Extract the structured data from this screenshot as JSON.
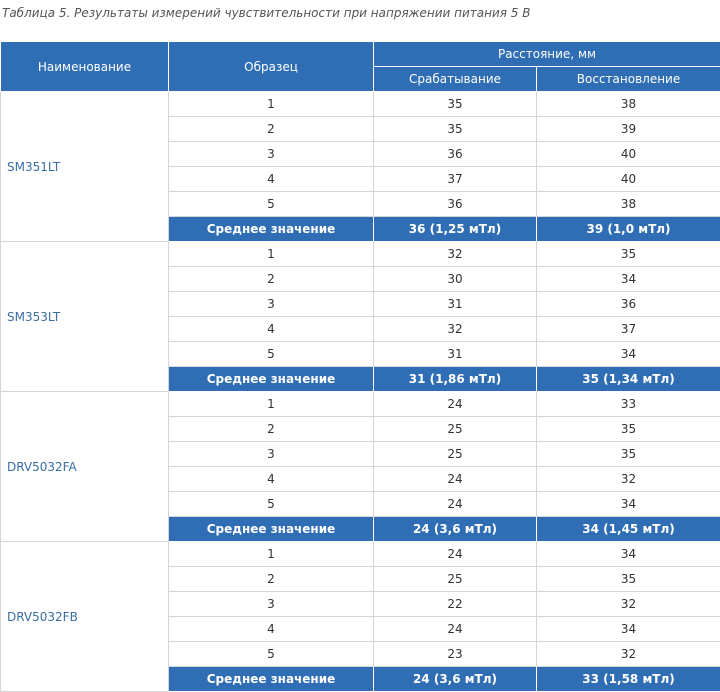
{
  "caption": "Таблица 5. Результаты измерений чувствительности при напряжении питания 5 В",
  "header": {
    "name": "Наименование",
    "sample": "Образец",
    "distance": "Расстояние, мм",
    "trigger": "Срабатывание",
    "release": "Восстановление"
  },
  "groups": [
    {
      "name": "SM351LT",
      "rows": [
        [
          1,
          35,
          38
        ],
        [
          2,
          35,
          39
        ],
        [
          3,
          36,
          40
        ],
        [
          4,
          37,
          40
        ],
        [
          5,
          36,
          38
        ]
      ],
      "average": {
        "label": "Среднее значение",
        "trigger": "36 (1,25 мТл)",
        "release": "39 (1,0 мТл)"
      }
    },
    {
      "name": "SM353LT",
      "rows": [
        [
          1,
          32,
          35
        ],
        [
          2,
          30,
          34
        ],
        [
          3,
          31,
          36
        ],
        [
          4,
          32,
          37
        ],
        [
          5,
          31,
          34
        ]
      ],
      "average": {
        "label": "Среднее значение",
        "trigger": "31 (1,86 мТл)",
        "release": "35 (1,34 мТл)"
      }
    },
    {
      "name": "DRV5032FA",
      "rows": [
        [
          1,
          24,
          33
        ],
        [
          2,
          25,
          35
        ],
        [
          3,
          25,
          35
        ],
        [
          4,
          24,
          32
        ],
        [
          5,
          24,
          34
        ]
      ],
      "average": {
        "label": "Среднее значение",
        "trigger": "24 (3,6 мТл)",
        "release": "34 (1,45 мТл)"
      }
    },
    {
      "name": "DRV5032FB",
      "rows": [
        [
          1,
          24,
          34
        ],
        [
          2,
          25,
          35
        ],
        [
          3,
          22,
          32
        ],
        [
          4,
          24,
          34
        ],
        [
          5,
          23,
          32
        ]
      ],
      "average": {
        "label": "Среднее значение",
        "trigger": "24 (3,6 мТл)",
        "release": "33 (1,58 мТл)"
      }
    }
  ]
}
